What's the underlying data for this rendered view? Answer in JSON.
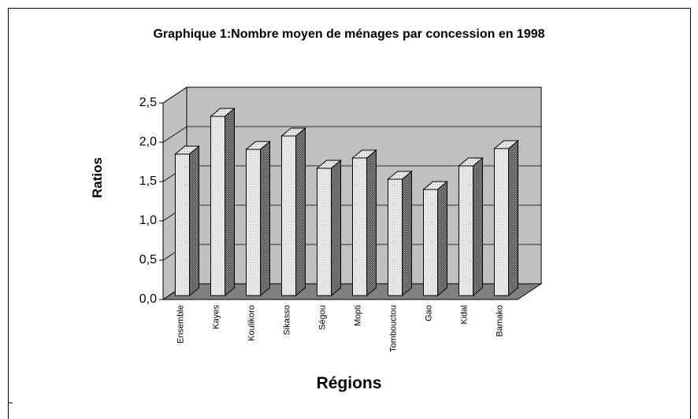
{
  "chart_data": {
    "type": "bar3d",
    "title": "Graphique 1:Nombre moyen de ménages par concession en 1998",
    "xlabel": "Régions",
    "ylabel": "Ratios",
    "categories": [
      "Ensemble",
      "Kayes",
      "Koulikoro",
      "Sikasso",
      "Ségou",
      "Mopti",
      "Tombouctou",
      "Gao",
      "Kidal",
      "Bamako"
    ],
    "values": [
      1.8,
      2.28,
      1.86,
      2.03,
      1.62,
      1.75,
      1.48,
      1.35,
      1.65,
      1.87
    ],
    "color": "#e6e6e6",
    "ylim": [
      0,
      2.5
    ],
    "yticks": [
      {
        "value": 0,
        "label": "0,0"
      },
      {
        "value": 0.5,
        "label": "0,5"
      },
      {
        "value": 1,
        "label": "1,0"
      },
      {
        "value": 1.5,
        "label": "1,5"
      },
      {
        "value": 2,
        "label": "2,0"
      },
      {
        "value": 2.5,
        "label": "2,5"
      }
    ],
    "grid": true
  }
}
